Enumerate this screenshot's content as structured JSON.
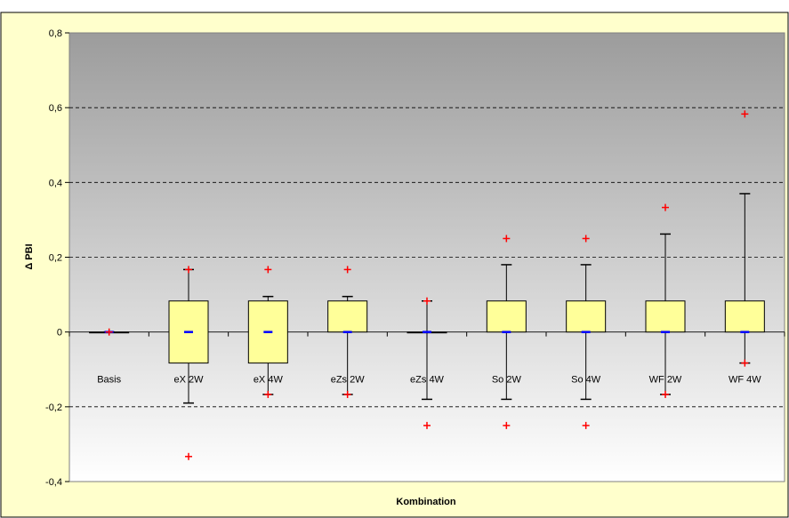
{
  "chart_data": {
    "type": "box",
    "xlabel": "Kombination",
    "ylabel": "Δ PBI",
    "ylim": [
      -0.4,
      0.8
    ],
    "yticks": [
      -0.4,
      -0.2,
      0,
      0.2,
      0.4,
      0.6,
      0.8
    ],
    "ytick_labels": [
      "-0,4",
      "-0,2",
      "0",
      "0,2",
      "0,4",
      "0,6",
      "0,8"
    ],
    "grid": "horizontal dashed",
    "colors": {
      "frame_background": "#ffffcc",
      "box_fill": "#ffff99",
      "median_marker": "#0000ff",
      "outlier_marker": "#ff0000",
      "plot_gradient_top": "#9c9c9c",
      "plot_gradient_bottom": "#ffffff"
    },
    "categories": [
      "Basis",
      "eX 2W",
      "eX 4W",
      "eZs 2W",
      "eZs 4W",
      "So 2W",
      "So 4W",
      "WF 2W",
      "WF 4W"
    ],
    "boxes": [
      {
        "category": "Basis",
        "whisker_low": 0,
        "q1": 0,
        "median": 0,
        "q3": 0,
        "whisker_high": 0,
        "outliers": [
          0
        ]
      },
      {
        "category": "eX 2W",
        "whisker_low": -0.19,
        "q1": -0.083,
        "median": 0,
        "q3": 0.083,
        "whisker_high": 0.167,
        "outliers": [
          0.167,
          -0.333
        ]
      },
      {
        "category": "eX 4W",
        "whisker_low": -0.167,
        "q1": -0.083,
        "median": 0,
        "q3": 0.083,
        "whisker_high": 0.095,
        "outliers": [
          0.167,
          -0.167
        ]
      },
      {
        "category": "eZs 2W",
        "whisker_low": -0.167,
        "q1": 0,
        "median": 0,
        "q3": 0.083,
        "whisker_high": 0.095,
        "outliers": [
          0.167,
          -0.167
        ]
      },
      {
        "category": "eZs 4W",
        "whisker_low": -0.18,
        "q1": 0,
        "median": 0,
        "q3": 0,
        "whisker_high": 0.083,
        "outliers": [
          0.083,
          -0.25
        ]
      },
      {
        "category": "So 2W",
        "whisker_low": -0.18,
        "q1": 0,
        "median": 0,
        "q3": 0.083,
        "whisker_high": 0.18,
        "outliers": [
          0.25,
          -0.25
        ]
      },
      {
        "category": "So 4W",
        "whisker_low": -0.18,
        "q1": 0,
        "median": 0,
        "q3": 0.083,
        "whisker_high": 0.18,
        "outliers": [
          0.25,
          -0.25
        ]
      },
      {
        "category": "WF 2W",
        "whisker_low": -0.167,
        "q1": 0,
        "median": 0,
        "q3": 0.083,
        "whisker_high": 0.262,
        "outliers": [
          0.333,
          -0.167
        ]
      },
      {
        "category": "WF 4W",
        "whisker_low": -0.083,
        "q1": 0,
        "median": 0,
        "q3": 0.083,
        "whisker_high": 0.37,
        "outliers": [
          0.583,
          -0.083
        ]
      }
    ]
  }
}
